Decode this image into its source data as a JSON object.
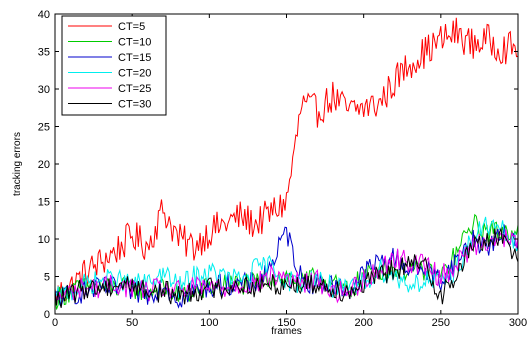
{
  "chart_data": {
    "type": "line",
    "title": "",
    "xlabel": "frames",
    "ylabel": "tracking errors",
    "xlim": [
      0,
      300
    ],
    "ylim": [
      0,
      40
    ],
    "xticks": [
      0,
      50,
      100,
      150,
      200,
      250,
      300
    ],
    "yticks": [
      0,
      5,
      10,
      15,
      20,
      25,
      30,
      35,
      40
    ],
    "grid": false,
    "legend_position": "top-left",
    "keyframe_step": 10,
    "series": [
      {
        "name": "CT=5",
        "color": "#ff0000",
        "values": [
          2.5,
          3.5,
          5.5,
          7,
          8.5,
          10.5,
          9,
          14,
          10,
          9,
          11,
          12,
          13,
          12,
          13.5,
          15,
          28,
          27,
          29,
          27,
          27.5,
          28,
          31,
          33.5,
          35,
          36.5,
          37.5,
          36,
          36.5,
          35.5,
          35.5
        ]
      },
      {
        "name": "CT=10",
        "color": "#00cc00",
        "values": [
          2,
          3,
          3.5,
          3.5,
          3.5,
          3.5,
          3,
          3.5,
          2.5,
          3,
          3.5,
          4,
          4,
          4,
          5,
          5,
          4,
          5,
          4,
          3,
          5,
          6,
          6,
          6,
          5.5,
          5,
          8,
          12,
          11,
          11,
          11.5
        ]
      },
      {
        "name": "CT=15",
        "color": "#0000cc",
        "values": [
          2,
          2.5,
          3,
          3.5,
          3.5,
          3,
          2.5,
          4,
          2,
          3,
          3.5,
          4,
          4,
          4,
          6.5,
          11,
          4.5,
          4,
          4,
          3,
          5.5,
          7,
          7.5,
          6,
          6,
          4.5,
          7,
          10,
          9,
          10.5,
          10
        ]
      },
      {
        "name": "CT=20",
        "color": "#00eeee",
        "values": [
          2,
          3,
          4,
          4.5,
          4.5,
          4,
          4,
          5.5,
          3.5,
          5,
          5.5,
          5,
          4.5,
          6,
          6.5,
          4.5,
          4,
          5,
          3.5,
          3,
          4,
          6,
          5,
          4,
          4.5,
          4,
          6,
          10,
          12,
          11,
          9
        ]
      },
      {
        "name": "CT=25",
        "color": "#ee00ee",
        "values": [
          2,
          3,
          3.5,
          3.5,
          4,
          3.5,
          3,
          3.5,
          3,
          3.5,
          3.5,
          3.5,
          4,
          4,
          5,
          5,
          4,
          4.5,
          3,
          3,
          4.5,
          6,
          7.5,
          7,
          6.5,
          5,
          6.5,
          9,
          10,
          10,
          9.5
        ]
      },
      {
        "name": "CT=30",
        "color": "#000000",
        "values": [
          2,
          2.5,
          3.5,
          3.5,
          4,
          4,
          3,
          3,
          2.5,
          3,
          3.5,
          3.5,
          4,
          3.5,
          4,
          4,
          4,
          4,
          3.5,
          3,
          4,
          5,
          6,
          6.5,
          6.5,
          2.5,
          5,
          9,
          10,
          10,
          8
        ]
      }
    ]
  }
}
